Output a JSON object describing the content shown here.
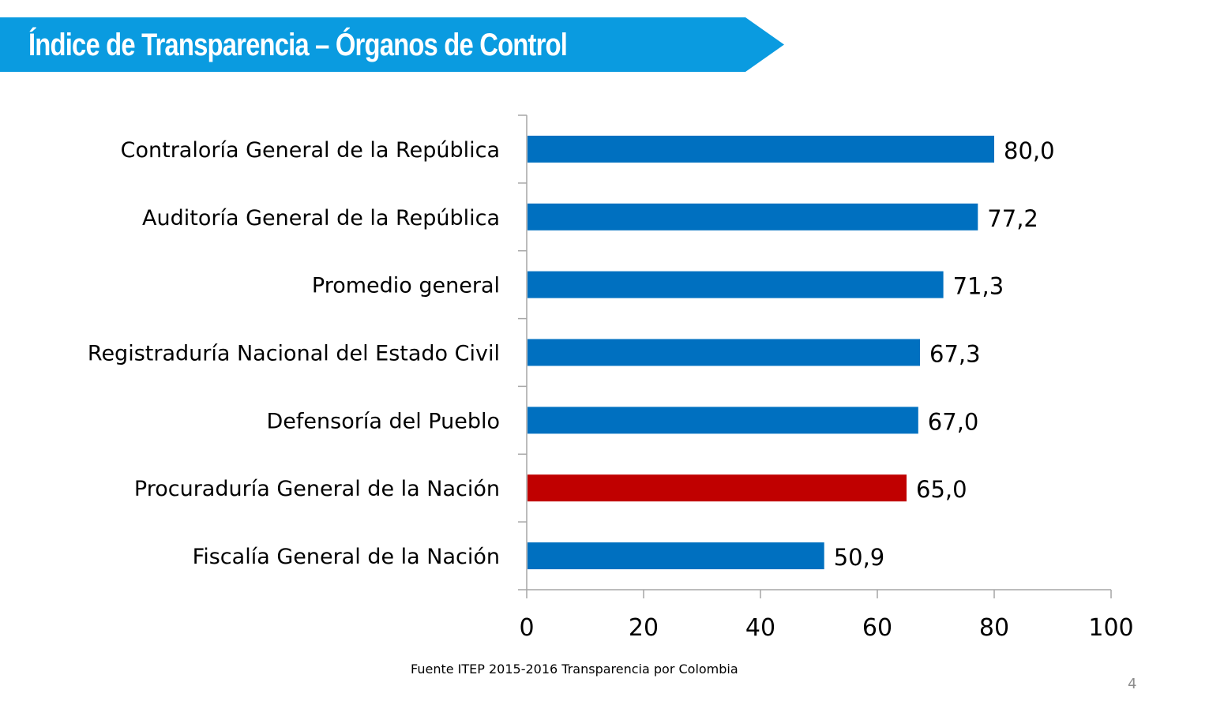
{
  "header": {
    "title": "Índice de Transparencia – Órganos de Control",
    "banner_color": "#0a9be0"
  },
  "chart_data": {
    "type": "bar",
    "orientation": "horizontal",
    "title": "Índice de Transparencia – Órganos de Control",
    "xlabel": "",
    "ylabel": "",
    "categories": [
      "Contraloría General de la República",
      "Auditoría General de la República",
      "Promedio general",
      "Registraduría Nacional del Estado Civil",
      "Defensoría del Pueblo",
      "Procuraduría General de la Nación",
      "Fiscalía General de la Nación"
    ],
    "values": [
      80.0,
      77.2,
      71.3,
      67.3,
      67.0,
      65.0,
      50.9
    ],
    "value_labels": [
      "80,0",
      "77,2",
      "71,3",
      "67,3",
      "67,0",
      "65,0",
      "50,9"
    ],
    "colors": [
      "#0070c0",
      "#0070c0",
      "#0070c0",
      "#0070c0",
      "#0070c0",
      "#c00000",
      "#0070c0"
    ],
    "highlight": "Procuraduría General de la Nación",
    "xlim": [
      0,
      100
    ],
    "xticks": [
      0,
      20,
      40,
      60,
      80,
      100
    ],
    "xtick_labels": [
      "0",
      "20",
      "40",
      "60",
      "80",
      "100"
    ],
    "grid": false,
    "legend": "none",
    "axis_color": "#a6a6a6"
  },
  "footer": {
    "source": "Fuente ITEP 2015-2016 Transparencia por Colombia",
    "page_number": "4"
  }
}
